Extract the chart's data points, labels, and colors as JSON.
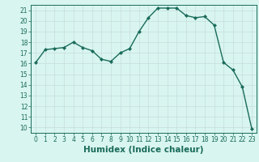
{
  "x": [
    0,
    1,
    2,
    3,
    4,
    5,
    6,
    7,
    8,
    9,
    10,
    11,
    12,
    13,
    14,
    15,
    16,
    17,
    18,
    19,
    20,
    21,
    22,
    23
  ],
  "y": [
    16.1,
    17.3,
    17.4,
    17.5,
    18.0,
    17.5,
    17.2,
    16.4,
    16.2,
    17.0,
    17.4,
    19.0,
    20.3,
    21.2,
    21.2,
    21.2,
    20.5,
    20.3,
    20.4,
    19.6,
    16.1,
    15.4,
    13.8,
    9.9
  ],
  "line_color": "#1a6b5a",
  "marker": "D",
  "marker_size": 2.0,
  "bg_color": "#d8f5f0",
  "grid_color": "#c8dede",
  "xlabel": "Humidex (Indice chaleur)",
  "ylim": [
    9.5,
    21.5
  ],
  "xlim": [
    -0.5,
    23.5
  ],
  "yticks": [
    10,
    11,
    12,
    13,
    14,
    15,
    16,
    17,
    18,
    19,
    20,
    21
  ],
  "xticks": [
    0,
    1,
    2,
    3,
    4,
    5,
    6,
    7,
    8,
    9,
    10,
    11,
    12,
    13,
    14,
    15,
    16,
    17,
    18,
    19,
    20,
    21,
    22,
    23
  ],
  "tick_color": "#1a6b5a",
  "label_color": "#1a6b5a",
  "tick_fontsize": 5.5,
  "xlabel_fontsize": 7.5,
  "spine_color": "#1a6b5a",
  "linewidth": 1.0
}
